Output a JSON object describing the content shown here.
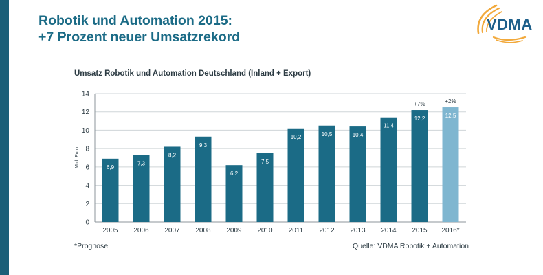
{
  "slide": {
    "title_line1": "Robotik und Automation 2015:",
    "title_line2": "+7 Prozent neuer Umsatzrekord",
    "logo_text": "VDMA",
    "footnote": "*Prognose",
    "source": "Quelle: VDMA Robotik + Automation"
  },
  "colors": {
    "bar": "#1b6b86",
    "forecast_bar": "#7fb6d0",
    "title": "#1b6b86",
    "logo_blue": "#1d5f8a",
    "logo_gold": "#f2a93b",
    "strip": "#1b5f78"
  },
  "chart_data": {
    "type": "bar",
    "title": "Umsatz Robotik und Automation Deutschland (Inland + Export)",
    "xlabel": "",
    "ylabel": "Mrd. Euro",
    "ylim": [
      0,
      14
    ],
    "yticks": [
      0,
      2,
      4,
      6,
      8,
      10,
      12,
      14
    ],
    "grid": true,
    "categories": [
      "2005",
      "2006",
      "2007",
      "2008",
      "2009",
      "2010",
      "2011",
      "2012",
      "2013",
      "2014",
      "2015",
      "2016*"
    ],
    "values": [
      6.9,
      7.3,
      8.2,
      9.3,
      6.2,
      7.5,
      10.2,
      10.5,
      10.4,
      11.4,
      12.2,
      12.5
    ],
    "value_labels": [
      "6,9",
      "7,3",
      "8,2",
      "9,3",
      "6,2",
      "7,5",
      "10,2",
      "10,5",
      "10,4",
      "11,4",
      "12,2",
      "12,5"
    ],
    "forecast_flags": [
      false,
      false,
      false,
      false,
      false,
      false,
      false,
      false,
      false,
      false,
      false,
      true
    ],
    "annotations": [
      {
        "category": "2015",
        "text": "+7%"
      },
      {
        "category": "2016*",
        "text": "+2%"
      }
    ]
  }
}
